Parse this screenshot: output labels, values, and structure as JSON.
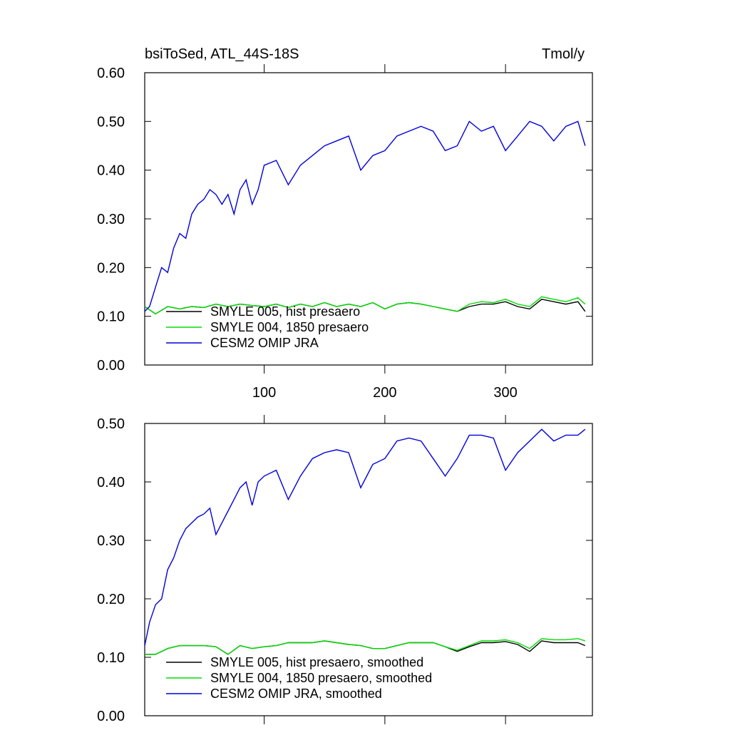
{
  "chart_data": [
    {
      "type": "line",
      "title_left": "bsiToSed, ATL_44S-18S",
      "title_right": "Tmol/y",
      "xlim": [
        1,
        372
      ],
      "ylim": [
        0,
        0.6
      ],
      "xticks": [
        100,
        200,
        300
      ],
      "xtick_labels": [
        "100",
        "200",
        "300"
      ],
      "yticks": [
        0,
        0.1,
        0.2,
        0.3,
        0.4,
        0.5,
        0.6
      ],
      "ytick_labels": [
        "0.00",
        "0.10",
        "0.20",
        "0.30",
        "0.40",
        "0.50",
        "0.60"
      ],
      "grid": false,
      "legend_position": "bottom-left",
      "series": [
        {
          "name": "SMYLE 005, hist presaero",
          "color": "#000000",
          "x": [
            1,
            10,
            20,
            30,
            40,
            50,
            60,
            70,
            80,
            90,
            100,
            110,
            120,
            130,
            140,
            150,
            160,
            170,
            180,
            190,
            200,
            210,
            220,
            230,
            240,
            250,
            260,
            270,
            280,
            290,
            300,
            310,
            320,
            330,
            340,
            350,
            360,
            366
          ],
          "y": [
            0.12,
            0.105,
            0.12,
            0.115,
            0.12,
            0.118,
            0.125,
            0.12,
            0.125,
            0.122,
            0.12,
            0.125,
            0.118,
            0.125,
            0.12,
            0.128,
            0.12,
            0.125,
            0.12,
            0.128,
            0.115,
            0.125,
            0.128,
            0.125,
            0.12,
            0.115,
            0.11,
            0.12,
            0.125,
            0.125,
            0.13,
            0.12,
            0.115,
            0.135,
            0.13,
            0.125,
            0.13,
            0.11
          ]
        },
        {
          "name": "SMYLE 004, 1850 presaero",
          "color": "#00dd00",
          "x": [
            1,
            10,
            20,
            30,
            40,
            50,
            60,
            70,
            80,
            90,
            100,
            110,
            120,
            130,
            140,
            150,
            160,
            170,
            180,
            190,
            200,
            210,
            220,
            230,
            240,
            250,
            260,
            270,
            280,
            290,
            300,
            310,
            320,
            330,
            340,
            350,
            360,
            366
          ],
          "y": [
            0.12,
            0.105,
            0.12,
            0.115,
            0.12,
            0.118,
            0.125,
            0.12,
            0.125,
            0.122,
            0.12,
            0.125,
            0.118,
            0.125,
            0.12,
            0.128,
            0.12,
            0.125,
            0.12,
            0.128,
            0.115,
            0.125,
            0.128,
            0.125,
            0.12,
            0.115,
            0.11,
            0.125,
            0.13,
            0.128,
            0.135,
            0.125,
            0.12,
            0.14,
            0.135,
            0.13,
            0.138,
            0.125
          ]
        },
        {
          "name": "CESM2 OMIP JRA",
          "color": "#0000dd",
          "x": [
            1,
            5,
            10,
            15,
            20,
            25,
            30,
            35,
            40,
            45,
            50,
            55,
            60,
            65,
            70,
            75,
            80,
            85,
            90,
            95,
            100,
            110,
            120,
            130,
            140,
            150,
            160,
            170,
            180,
            190,
            200,
            210,
            220,
            230,
            240,
            250,
            260,
            270,
            280,
            290,
            300,
            310,
            320,
            330,
            340,
            350,
            360,
            366
          ],
          "y": [
            0.11,
            0.12,
            0.16,
            0.2,
            0.19,
            0.24,
            0.27,
            0.26,
            0.31,
            0.33,
            0.34,
            0.36,
            0.35,
            0.33,
            0.35,
            0.31,
            0.36,
            0.38,
            0.33,
            0.36,
            0.41,
            0.42,
            0.37,
            0.41,
            0.43,
            0.45,
            0.46,
            0.47,
            0.4,
            0.43,
            0.44,
            0.47,
            0.48,
            0.49,
            0.48,
            0.44,
            0.45,
            0.5,
            0.48,
            0.49,
            0.44,
            0.47,
            0.5,
            0.49,
            0.46,
            0.49,
            0.5,
            0.45
          ]
        }
      ]
    },
    {
      "type": "line",
      "xlim": [
        1,
        372
      ],
      "ylim": [
        0,
        0.5
      ],
      "xticks": [
        100,
        200,
        300
      ],
      "xtick_labels": [],
      "yticks": [
        0,
        0.1,
        0.2,
        0.3,
        0.4,
        0.5
      ],
      "ytick_labels": [
        "0.00",
        "0.10",
        "0.20",
        "0.30",
        "0.40",
        "0.50"
      ],
      "grid": false,
      "legend_position": "bottom-left",
      "series": [
        {
          "name": "SMYLE 005, hist presaero, smoothed",
          "color": "#000000",
          "x": [
            1,
            10,
            20,
            30,
            40,
            50,
            60,
            70,
            80,
            90,
            100,
            110,
            120,
            130,
            140,
            150,
            160,
            170,
            180,
            190,
            200,
            210,
            220,
            230,
            240,
            250,
            260,
            270,
            280,
            290,
            300,
            310,
            320,
            330,
            340,
            350,
            360,
            366
          ],
          "y": [
            0.105,
            0.105,
            0.115,
            0.12,
            0.12,
            0.12,
            0.118,
            0.105,
            0.12,
            0.115,
            0.118,
            0.12,
            0.125,
            0.125,
            0.125,
            0.128,
            0.125,
            0.122,
            0.12,
            0.115,
            0.115,
            0.12,
            0.125,
            0.125,
            0.125,
            0.118,
            0.11,
            0.118,
            0.125,
            0.125,
            0.127,
            0.122,
            0.11,
            0.128,
            0.125,
            0.125,
            0.125,
            0.12
          ]
        },
        {
          "name": "SMYLE 004, 1850 presaero, smoothed",
          "color": "#00dd00",
          "x": [
            1,
            10,
            20,
            30,
            40,
            50,
            60,
            70,
            80,
            90,
            100,
            110,
            120,
            130,
            140,
            150,
            160,
            170,
            180,
            190,
            200,
            210,
            220,
            230,
            240,
            250,
            260,
            270,
            280,
            290,
            300,
            310,
            320,
            330,
            340,
            350,
            360,
            366
          ],
          "y": [
            0.105,
            0.105,
            0.115,
            0.12,
            0.12,
            0.12,
            0.118,
            0.105,
            0.12,
            0.115,
            0.118,
            0.12,
            0.125,
            0.125,
            0.125,
            0.128,
            0.125,
            0.122,
            0.12,
            0.115,
            0.115,
            0.12,
            0.125,
            0.125,
            0.125,
            0.118,
            0.112,
            0.12,
            0.128,
            0.128,
            0.13,
            0.125,
            0.115,
            0.132,
            0.13,
            0.13,
            0.132,
            0.128
          ]
        },
        {
          "name": "CESM2 OMIP JRA, smoothed",
          "color": "#0000dd",
          "x": [
            1,
            5,
            10,
            15,
            20,
            25,
            30,
            35,
            40,
            45,
            50,
            55,
            60,
            65,
            70,
            75,
            80,
            85,
            90,
            95,
            100,
            110,
            120,
            130,
            140,
            150,
            160,
            170,
            180,
            190,
            200,
            210,
            220,
            230,
            240,
            250,
            260,
            270,
            280,
            290,
            300,
            310,
            320,
            330,
            340,
            350,
            360,
            366
          ],
          "y": [
            0.12,
            0.16,
            0.19,
            0.2,
            0.25,
            0.27,
            0.3,
            0.32,
            0.33,
            0.34,
            0.345,
            0.355,
            0.31,
            0.33,
            0.35,
            0.37,
            0.39,
            0.4,
            0.36,
            0.4,
            0.41,
            0.42,
            0.37,
            0.41,
            0.44,
            0.45,
            0.455,
            0.45,
            0.39,
            0.43,
            0.44,
            0.47,
            0.475,
            0.47,
            0.44,
            0.41,
            0.44,
            0.48,
            0.48,
            0.475,
            0.42,
            0.45,
            0.47,
            0.49,
            0.47,
            0.48,
            0.48,
            0.49
          ]
        }
      ]
    }
  ]
}
